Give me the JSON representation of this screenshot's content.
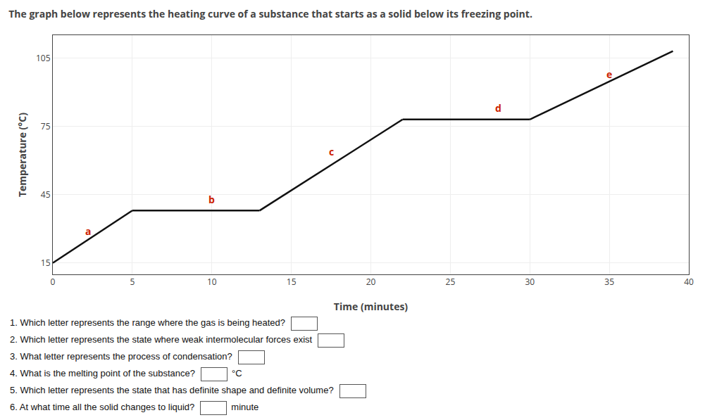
{
  "chart_data": {
    "type": "line",
    "title": "The graph below represents the heating curve of a substance that starts as a solid below its freezing point.",
    "xlabel": "Time (minutes)",
    "ylabel": "Temperature (°C)",
    "series": [
      {
        "x": [
          0,
          5
        ],
        "values": [
          15,
          38
        ],
        "color": "#111111"
      },
      {
        "x": [
          5,
          13
        ],
        "values": [
          38,
          38
        ],
        "color": "#111111"
      },
      {
        "x": [
          13,
          22
        ],
        "values": [
          38,
          78
        ],
        "color": "#111111"
      },
      {
        "x": [
          22,
          30
        ],
        "values": [
          78,
          78
        ],
        "color": "#111111"
      },
      {
        "x": [
          30,
          39
        ],
        "values": [
          78,
          108
        ],
        "color": "#111111"
      }
    ],
    "annotations": [
      {
        "text": "a",
        "x": 2.2,
        "y": 29,
        "color": "#cc2200"
      },
      {
        "text": "b",
        "x": 10.0,
        "y": 43,
        "color": "#cc2200"
      },
      {
        "text": "c",
        "x": 17.5,
        "y": 64,
        "color": "#cc2200"
      },
      {
        "text": "d",
        "x": 28.0,
        "y": 83,
        "color": "#cc2200"
      },
      {
        "text": "e",
        "x": 35.0,
        "y": 98,
        "color": "#cc2200"
      }
    ],
    "xlim": [
      0,
      40
    ],
    "ylim": [
      10,
      115
    ],
    "xticks": [
      0,
      5,
      10,
      15,
      20,
      25,
      30,
      35,
      40
    ],
    "yticks": [
      15,
      45,
      75,
      105
    ],
    "grid": true,
    "questions": [
      {
        "text": "1. Which letter represents the range where the gas is being heated?"
      },
      {
        "text": "2. Which letter represents the state where weak intermolecular forces exist"
      },
      {
        "text": "3. What letter represents the process of condensation?"
      },
      {
        "text": "4. What is the melting point of the substance?",
        "suffix": "°C"
      },
      {
        "text": "5. Which letter represents the state that has definite shape and definite volume?"
      },
      {
        "text": "6. At what time all the solid changes to liquid?",
        "suffix": "minute"
      }
    ]
  }
}
